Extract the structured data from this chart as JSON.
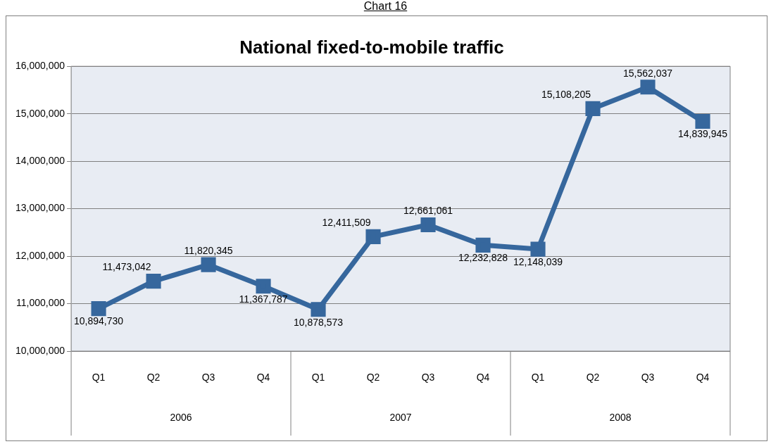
{
  "chart_data": {
    "type": "line",
    "title": "National fixed-to-mobile traffic",
    "categories": [
      "Q1",
      "Q2",
      "Q3",
      "Q4",
      "Q1",
      "Q2",
      "Q3",
      "Q4",
      "Q1",
      "Q2",
      "Q3",
      "Q4"
    ],
    "series": [
      {
        "color": "#36679d",
        "values": [
          10894730,
          11473042,
          11820345,
          11367787,
          10878573,
          12411509,
          12661061,
          12232828,
          12148039,
          15108205,
          15562037,
          14839945
        ],
        "value_labels": [
          "10,894,730",
          "11,473,042",
          "11,820,345",
          "11,367,787",
          "10,878,573",
          "12,411,509",
          "12,661,061",
          "12,232,828",
          "12,148,039",
          "15,108,205",
          "15,562,037",
          "14,839,945"
        ]
      }
    ],
    "ylim": [
      10000000,
      16000000
    ],
    "yticks": [
      {
        "value": 10000000,
        "label": "10,000,000"
      },
      {
        "value": 11000000,
        "label": "11,000,000"
      },
      {
        "value": 12000000,
        "label": "12,000,000"
      },
      {
        "value": 13000000,
        "label": "13,000,000"
      },
      {
        "value": 14000000,
        "label": "14,000,000"
      },
      {
        "value": 15000000,
        "label": "15,000,000"
      },
      {
        "value": 16000000,
        "label": "16,000,000"
      }
    ],
    "grid": "y",
    "legend": false,
    "marker": "square",
    "line_style": "solid",
    "annotations": [
      "Chart 16",
      "2006",
      "2007",
      "2008"
    ]
  }
}
